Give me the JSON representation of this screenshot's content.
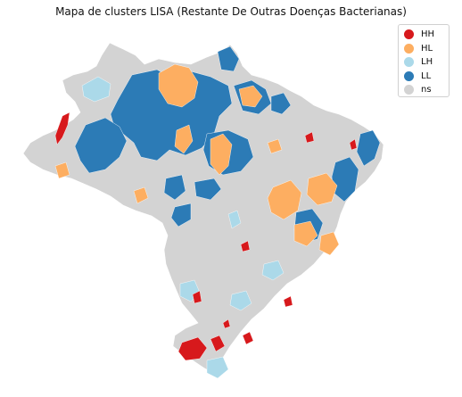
{
  "title": "Mapa de clusters LISA (Restante De Outras Doenças Bacterianas)",
  "legend": {
    "position": "top-right",
    "items": [
      {
        "label": "HH",
        "color": "#d7191c"
      },
      {
        "label": "HL",
        "color": "#fdae61"
      },
      {
        "label": "LH",
        "color": "#abd9e9"
      },
      {
        "label": "LL",
        "color": "#2c7bb6"
      },
      {
        "label": "ns",
        "color": "#d3d3d3"
      }
    ]
  }
}
